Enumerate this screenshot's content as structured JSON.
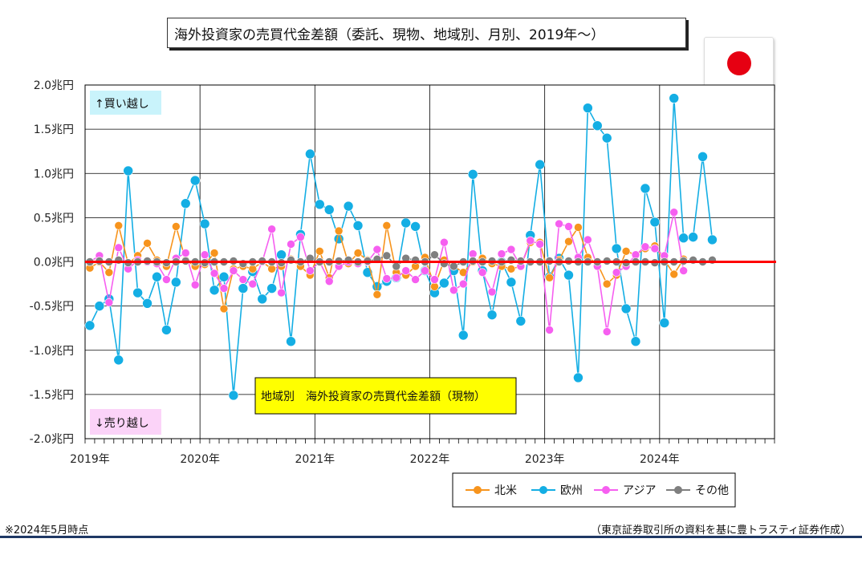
{
  "title": "海外投資家の売買代金差額（委託、現物、地域別、月別、2019年～）",
  "flag_icon": "japan-flag-icon",
  "footnote_left": "※2024年5月時点",
  "footnote_right": "（東京証券取引所の資料を基に豊トラスティ証券作成）",
  "chart_data": {
    "type": "line",
    "caption": "地域別　海外投資家の売買代金差額（現物）",
    "buy_label": "↑買い越し",
    "sell_label": "↓売り越し",
    "ylim": [
      -2.0,
      2.0
    ],
    "yticks": [
      2.0,
      1.5,
      1.0,
      0.5,
      0.0,
      -0.5,
      -1.0,
      -1.5,
      -2.0
    ],
    "ytick_labels": [
      "2.0兆円",
      "1.5兆円",
      "1.0兆円",
      "0.5兆円",
      "0.0兆円",
      "-0.5兆円",
      "-1.0兆円",
      "-1.5兆円",
      "-2.0兆円"
    ],
    "year_labels": [
      "2019年",
      "2020年",
      "2021年",
      "2022年",
      "2023年",
      "2024年"
    ],
    "months_total": 72,
    "zero_line_color": "#ff0000",
    "grid": true,
    "legend_position": "bottom-right",
    "series": [
      {
        "name": "北米",
        "color": "#f7941d",
        "values": [
          -0.07,
          0.0,
          -0.12,
          0.41,
          -0.02,
          0.07,
          0.21,
          0.02,
          -0.05,
          0.4,
          0.02,
          -0.05,
          -0.03,
          0.1,
          -0.53,
          -0.08,
          -0.05,
          -0.08,
          0.0,
          -0.08,
          -0.05,
          0.03,
          -0.05,
          -0.15,
          0.12,
          -0.18,
          0.35,
          -0.02,
          0.1,
          0.02,
          -0.37,
          0.41,
          -0.12,
          -0.15,
          -0.05,
          0.05,
          -0.28,
          0.02,
          -0.05,
          -0.12,
          0.0,
          0.04,
          -0.02,
          -0.05,
          -0.08,
          -0.05,
          0.22,
          0.22,
          -0.18,
          0.02,
          0.23,
          0.39,
          0.05,
          -0.02,
          -0.25,
          -0.15,
          0.12,
          0.08,
          0.15,
          0.18,
          0.02,
          -0.14,
          0.03
        ],
        "start_index": 0
      },
      {
        "name": "欧州",
        "color": "#14aee4",
        "values": [
          -0.72,
          -0.5,
          -0.42,
          -1.11,
          1.03,
          -0.35,
          -0.47,
          -0.17,
          -0.77,
          -0.23,
          0.66,
          0.92,
          0.43,
          -0.32,
          -0.17,
          -1.51,
          -0.3,
          -0.11,
          -0.42,
          -0.3,
          0.08,
          -0.9,
          0.31,
          1.22,
          0.65,
          0.59,
          0.26,
          0.63,
          0.41,
          -0.12,
          -0.28,
          -0.22,
          -0.18,
          0.44,
          0.4,
          -0.1,
          -0.35,
          -0.24,
          -0.1,
          -0.83,
          0.99,
          -0.1,
          -0.6,
          0.0,
          -0.23,
          -0.67,
          0.3,
          1.1,
          -0.17,
          0.04,
          -0.15,
          -1.31,
          1.74,
          1.54,
          1.4,
          0.15,
          -0.53,
          -0.9,
          0.83,
          0.45,
          -0.69,
          1.85,
          0.27,
          0.28,
          1.19,
          0.25
        ],
        "start_index": 0
      },
      {
        "name": "アジア",
        "color": "#f65ff0",
        "values": [
          0.0,
          0.07,
          -0.46,
          0.16,
          -0.08,
          0.02,
          0.0,
          -0.02,
          -0.2,
          0.04,
          0.1,
          -0.26,
          0.08,
          -0.13,
          -0.3,
          -0.1,
          -0.2,
          -0.25,
          0.0,
          0.37,
          -0.35,
          0.2,
          0.28,
          -0.1,
          0.0,
          -0.22,
          -0.05,
          0.0,
          -0.02,
          0.0,
          0.14,
          -0.19,
          -0.18,
          -0.1,
          -0.2,
          -0.1,
          -0.2,
          0.22,
          -0.32,
          -0.25,
          0.09,
          -0.12,
          -0.34,
          0.09,
          0.14,
          -0.05,
          0.24,
          0.2,
          -0.77,
          0.43,
          0.4,
          0.05,
          0.25,
          -0.05,
          -0.79,
          -0.12,
          -0.05,
          0.08,
          0.17,
          0.15,
          0.07,
          0.56,
          -0.1
        ],
        "start_index": 0
      },
      {
        "name": "その他",
        "color": "#7f7f7f",
        "values": [
          0.0,
          0.01,
          0.0,
          0.02,
          -0.01,
          0.0,
          0.01,
          0.0,
          -0.01,
          0.0,
          0.01,
          0.0,
          -0.01,
          0.0,
          0.0,
          0.01,
          -0.02,
          0.0,
          0.01,
          0.0,
          -0.01,
          0.02,
          0.0,
          0.04,
          0.0,
          0.0,
          0.01,
          0.02,
          0.0,
          0.01,
          0.03,
          0.07,
          -0.05,
          0.04,
          0.02,
          0.0,
          0.08,
          -0.02,
          -0.05,
          0.0,
          0.01,
          0.0,
          0.01,
          0.0,
          0.02,
          0.01,
          0.0,
          0.0,
          0.01,
          0.0,
          0.01,
          0.0,
          0.0,
          0.0,
          0.01,
          0.0,
          -0.01,
          0.0,
          0.0,
          -0.01,
          0.0,
          0.0,
          0.01,
          0.02,
          0.0,
          0.02
        ],
        "start_index": 0
      }
    ]
  }
}
